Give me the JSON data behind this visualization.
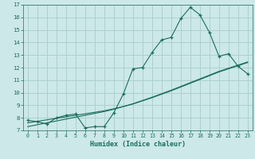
{
  "xlabel": "Humidex (Indice chaleur)",
  "ylabel": "",
  "bg_color": "#cce8e8",
  "grid_color": "#aacccc",
  "line_color": "#1a6e5e",
  "x_data": [
    0,
    1,
    2,
    3,
    4,
    5,
    6,
    7,
    8,
    9,
    10,
    11,
    12,
    13,
    14,
    15,
    16,
    17,
    18,
    19,
    20,
    21,
    22,
    23
  ],
  "y_main": [
    7.8,
    7.7,
    7.5,
    8.0,
    8.2,
    8.3,
    7.2,
    7.3,
    7.3,
    8.4,
    9.9,
    11.9,
    12.0,
    13.2,
    14.2,
    14.4,
    15.9,
    16.8,
    16.2,
    14.8,
    12.9,
    13.1,
    12.1,
    11.5
  ],
  "y_reg1": [
    7.6,
    7.72,
    7.84,
    7.96,
    8.08,
    8.2,
    8.32,
    8.44,
    8.56,
    8.72,
    8.9,
    9.1,
    9.35,
    9.6,
    9.88,
    10.15,
    10.45,
    10.75,
    11.05,
    11.35,
    11.65,
    11.9,
    12.15,
    12.4
  ],
  "y_reg2": [
    7.3,
    7.45,
    7.6,
    7.75,
    7.9,
    8.05,
    8.2,
    8.35,
    8.5,
    8.68,
    8.9,
    9.12,
    9.38,
    9.64,
    9.92,
    10.2,
    10.5,
    10.8,
    11.1,
    11.4,
    11.7,
    11.95,
    12.2,
    12.45
  ],
  "ylim": [
    7,
    17
  ],
  "xlim": [
    -0.5,
    23.5
  ],
  "yticks": [
    7,
    8,
    9,
    10,
    11,
    12,
    13,
    14,
    15,
    16,
    17
  ],
  "xticks": [
    0,
    1,
    2,
    3,
    4,
    5,
    6,
    7,
    8,
    9,
    10,
    11,
    12,
    13,
    14,
    15,
    16,
    17,
    18,
    19,
    20,
    21,
    22,
    23
  ]
}
